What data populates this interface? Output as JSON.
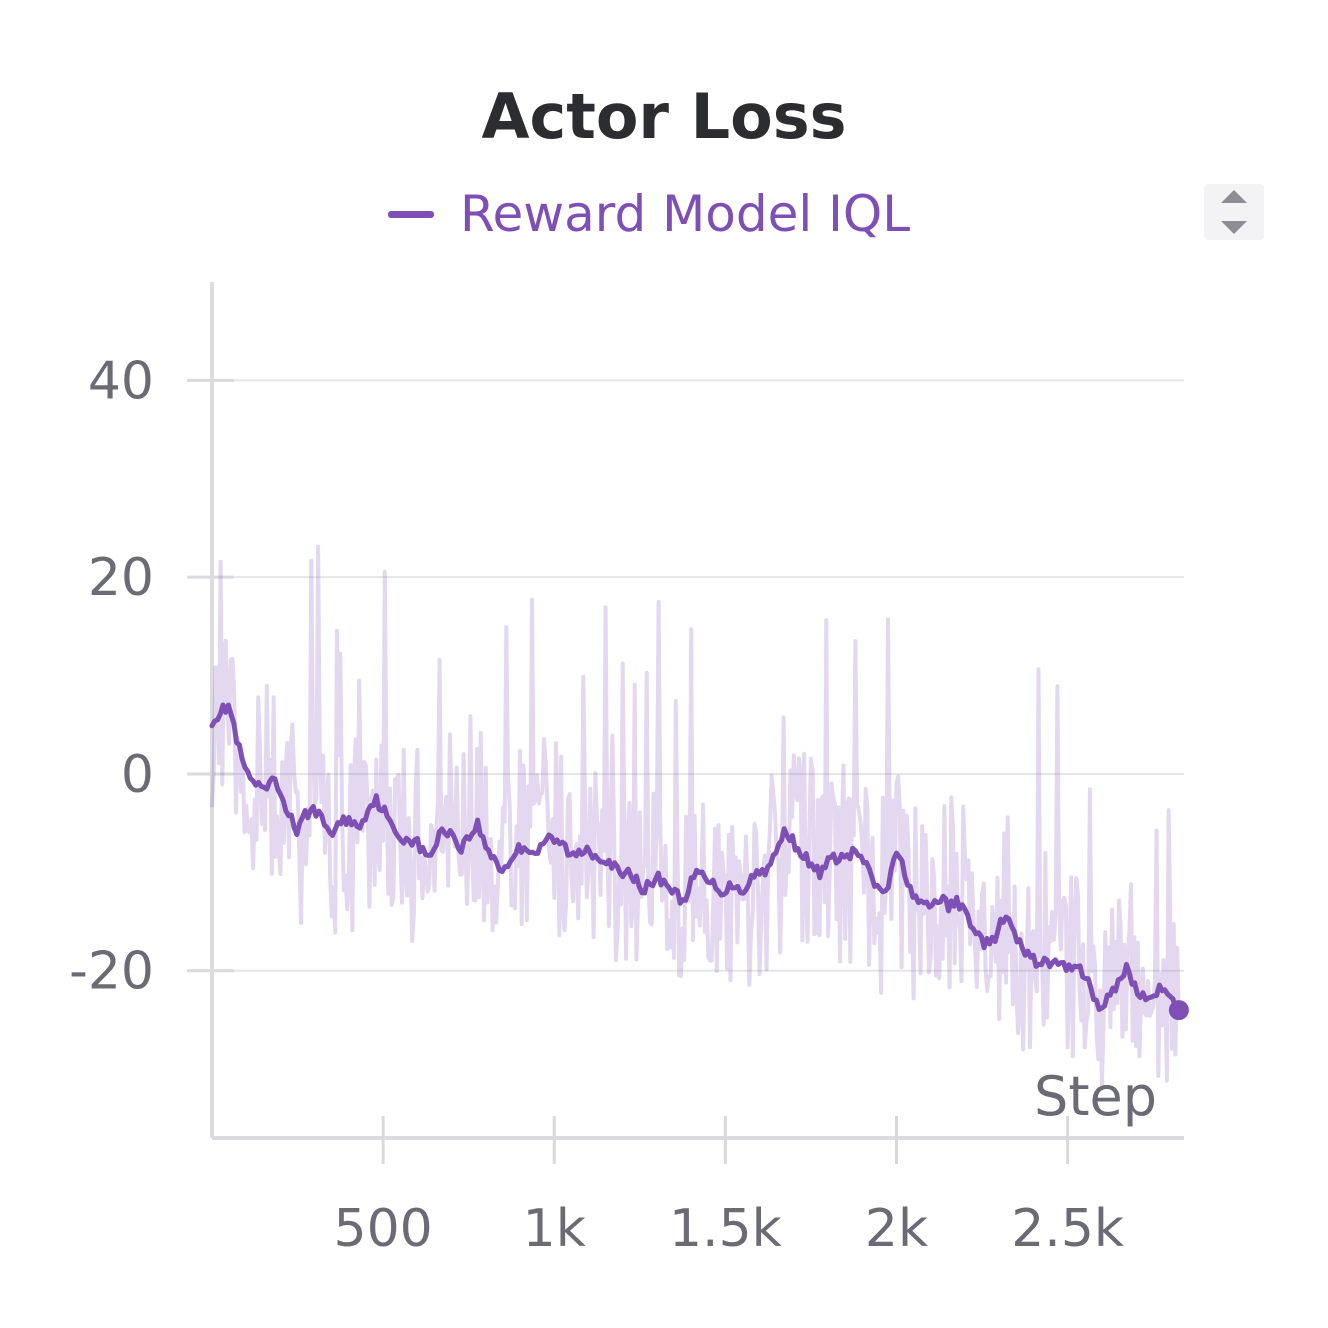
{
  "chart_data": {
    "type": "line",
    "title": "Actor Loss",
    "xlabel": "Step",
    "ylabel": "",
    "xlim": [
      0,
      2840
    ],
    "ylim": [
      -37,
      50
    ],
    "grid": true,
    "legend_position": "top-center",
    "x_ticks": [
      500,
      1000,
      1500,
      2000,
      2500
    ],
    "x_tick_labels": [
      "500",
      "1k",
      "1.5k",
      "2k",
      "2.5k"
    ],
    "y_ticks": [
      40,
      20,
      0,
      -20
    ],
    "y_tick_labels": [
      "40",
      "20",
      "0",
      "-20"
    ],
    "series": [
      {
        "name": "Reward Model IQL",
        "color": "#7e4fb5",
        "x": [
          0,
          50,
          75,
          100,
          125,
          150,
          175,
          200,
          225,
          250,
          275,
          300,
          325,
          350,
          375,
          400,
          425,
          450,
          475,
          500,
          525,
          550,
          575,
          600,
          625,
          650,
          675,
          700,
          725,
          750,
          775,
          800,
          825,
          850,
          875,
          900,
          925,
          950,
          975,
          1000,
          1025,
          1050,
          1075,
          1100,
          1125,
          1150,
          1175,
          1200,
          1225,
          1250,
          1275,
          1300,
          1325,
          1350,
          1375,
          1400,
          1425,
          1450,
          1475,
          1500,
          1525,
          1550,
          1575,
          1600,
          1625,
          1650,
          1675,
          1700,
          1725,
          1750,
          1775,
          1800,
          1825,
          1850,
          1875,
          1900,
          1925,
          1950,
          1975,
          2000,
          2025,
          2050,
          2075,
          2100,
          2125,
          2150,
          2175,
          2200,
          2225,
          2250,
          2275,
          2300,
          2325,
          2350,
          2375,
          2400,
          2425,
          2450,
          2475,
          2500,
          2525,
          2550,
          2575,
          2600,
          2625,
          2650,
          2675,
          2700,
          2725,
          2750,
          2775,
          2800,
          2825
        ],
        "values": [
          5.5,
          7,
          3,
          0,
          -1,
          -2,
          -0.5,
          -2,
          -4,
          -6,
          -4,
          -3.5,
          -5,
          -6,
          -5,
          -4.5,
          -5.5,
          -4,
          -2.5,
          -3.5,
          -5.5,
          -6.5,
          -6.5,
          -7,
          -8.5,
          -7.5,
          -5.5,
          -6,
          -7.5,
          -6.5,
          -5,
          -7.5,
          -8.5,
          -10,
          -8.5,
          -7.5,
          -7.5,
          -8,
          -6.5,
          -7,
          -7,
          -8.5,
          -8,
          -7.5,
          -8.5,
          -8.5,
          -9.5,
          -10.5,
          -10,
          -11.5,
          -11.5,
          -10.5,
          -11,
          -12,
          -13,
          -11,
          -10,
          -11,
          -11.5,
          -12,
          -11,
          -12,
          -10.5,
          -10,
          -9.5,
          -8,
          -5.5,
          -7,
          -8,
          -9.5,
          -10,
          -9,
          -8.5,
          -8.5,
          -8,
          -8.5,
          -10.5,
          -12,
          -11.5,
          -8,
          -10,
          -12.5,
          -13.5,
          -13.5,
          -12.5,
          -13.5,
          -13,
          -14,
          -15.5,
          -17,
          -17.5,
          -15.5,
          -14.5,
          -17,
          -18,
          -19,
          -19,
          -19.5,
          -19,
          -20,
          -19,
          -20.5,
          -22.5,
          -24,
          -22.5,
          -21,
          -19.5,
          -22,
          -23,
          -22,
          -22,
          -23,
          -24
        ]
      }
    ]
  },
  "controls": {
    "sort_icon": "sort-up-down-icon"
  }
}
